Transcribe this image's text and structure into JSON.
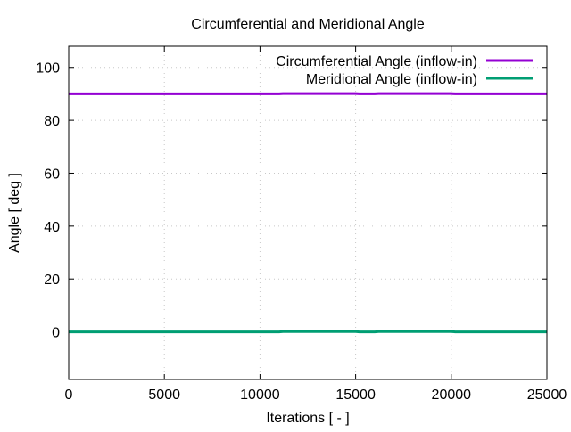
{
  "chart_data": {
    "type": "line",
    "title": "Circumferential and Meridional Angle",
    "xlabel": "Iterations [ - ]",
    "ylabel": "Angle [ deg ]",
    "xlim": [
      0,
      25000
    ],
    "ylim": [
      -18,
      108
    ],
    "x_ticks": [
      0,
      5000,
      10000,
      15000,
      20000,
      25000
    ],
    "x_tick_labels": [
      "0",
      "5000",
      "10000",
      "15000",
      "20000",
      "25000"
    ],
    "y_ticks": [
      0,
      20,
      40,
      60,
      80,
      100
    ],
    "y_tick_labels": [
      "0",
      "20",
      "40",
      "60",
      "80",
      "100"
    ],
    "grid": true,
    "legend_position": "top-right",
    "series": [
      {
        "name": "Circumferential Angle (inflow-in)",
        "color": "#9400d3",
        "x": [
          0,
          5000,
          11000,
          11200,
          15000,
          15200,
          16000,
          16200,
          20000,
          20200,
          25000
        ],
        "y": [
          90.0,
          90.0,
          90.0,
          90.1,
          90.1,
          90.0,
          90.0,
          90.1,
          90.1,
          90.0,
          90.0
        ]
      },
      {
        "name": "Meridional Angle (inflow-in)",
        "color": "#009e73",
        "x": [
          0,
          5000,
          11000,
          11200,
          15000,
          15200,
          16000,
          16200,
          20000,
          20200,
          25000
        ],
        "y": [
          0.0,
          0.0,
          0.0,
          0.1,
          0.1,
          0.0,
          0.0,
          0.1,
          0.1,
          0.0,
          0.0
        ]
      }
    ]
  }
}
